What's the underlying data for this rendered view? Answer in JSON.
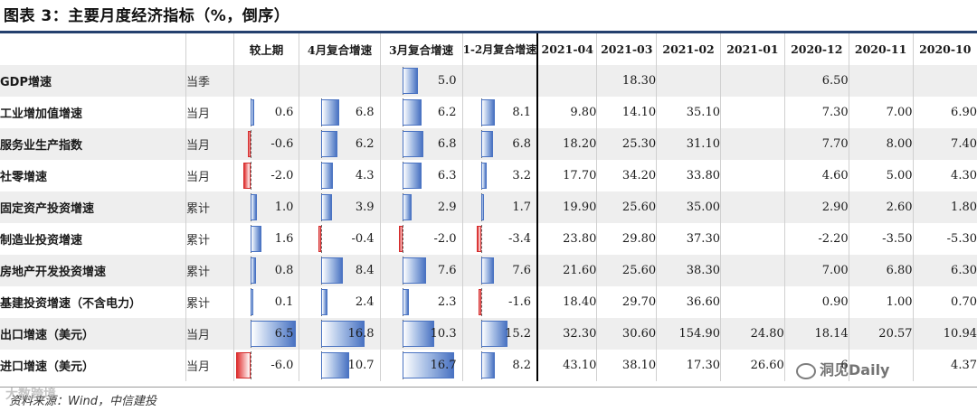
{
  "title": "图表 3：主要月度经济指标（%，倒序）",
  "headers": {
    "prev": "较上期",
    "apr_cum": "4月复合增速",
    "mar_cum": "3月复合增速",
    "janfeb_cum": "1-2月复合增速",
    "months": [
      "2021-04",
      "2021-03",
      "2021-02",
      "2021-01",
      "2020-12",
      "2020-11",
      "2020-10"
    ]
  },
  "rows": [
    {
      "name": "GDP增速",
      "freq": "当季",
      "prev": "",
      "apr": "",
      "mar": "5.0",
      "janfeb": "",
      "months": [
        "",
        "18.30",
        "",
        "",
        "6.50",
        "",
        ""
      ]
    },
    {
      "name": "工业增加值增速",
      "freq": "当月",
      "prev": "0.6",
      "apr": "6.8",
      "mar": "6.2",
      "janfeb": "8.1",
      "months": [
        "9.80",
        "14.10",
        "35.10",
        "",
        "7.30",
        "7.00",
        "6.90"
      ]
    },
    {
      "name": "服务业生产指数",
      "freq": "当月",
      "prev": "-0.6",
      "apr": "6.2",
      "mar": "6.8",
      "janfeb": "6.8",
      "months": [
        "18.20",
        "25.30",
        "31.10",
        "",
        "7.70",
        "8.00",
        "7.40"
      ]
    },
    {
      "name": "社零增速",
      "freq": "当月",
      "prev": "-2.0",
      "apr": "4.3",
      "mar": "6.3",
      "janfeb": "3.2",
      "months": [
        "17.70",
        "34.20",
        "33.80",
        "",
        "4.60",
        "5.00",
        "4.30"
      ]
    },
    {
      "name": "固定资产投资增速",
      "freq": "累计",
      "prev": "1.0",
      "apr": "3.9",
      "mar": "2.9",
      "janfeb": "1.7",
      "months": [
        "19.90",
        "25.60",
        "35.00",
        "",
        "2.90",
        "2.60",
        "1.80"
      ]
    },
    {
      "name": "制造业投资增速",
      "freq": "累计",
      "prev": "1.6",
      "apr": "-0.4",
      "mar": "-2.0",
      "janfeb": "-3.4",
      "months": [
        "23.80",
        "29.80",
        "37.30",
        "",
        "-2.20",
        "-3.50",
        "-5.30"
      ]
    },
    {
      "name": "房地产开发投资增速",
      "freq": "累计",
      "prev": "0.8",
      "apr": "8.4",
      "mar": "7.6",
      "janfeb": "7.6",
      "months": [
        "21.60",
        "25.60",
        "38.30",
        "",
        "7.00",
        "6.80",
        "6.30"
      ]
    },
    {
      "name": "基建投资增速（不含电力）",
      "freq": "累计",
      "prev": "0.1",
      "apr": "2.4",
      "mar": "2.3",
      "janfeb": "-1.6",
      "months": [
        "18.40",
        "29.70",
        "36.60",
        "",
        "0.90",
        "1.00",
        "0.70"
      ]
    },
    {
      "name": "出口增速（美元）",
      "freq": "当月",
      "prev": "6.5",
      "apr": "16.8",
      "mar": "10.3",
      "janfeb": "15.2",
      "months": [
        "32.30",
        "30.60",
        "154.90",
        "24.80",
        "18.14",
        "20.57",
        "10.94"
      ]
    },
    {
      "name": "进口增速（美元）",
      "freq": "当月",
      "prev": "-6.0",
      "apr": "10.7",
      "mar": "16.7",
      "janfeb": "8.2",
      "months": [
        "43.10",
        "38.10",
        "17.30",
        "26.60",
        "6",
        "",
        "4.37"
      ]
    }
  ],
  "source": "资料来源：Wind，中信建投",
  "watermark_left": "大数跨境",
  "watermark_right": "洞见Daily",
  "colors": {
    "positive_bar": "#4a73c2",
    "negative_bar": "#e03030",
    "header_rule": "#24406e"
  }
}
